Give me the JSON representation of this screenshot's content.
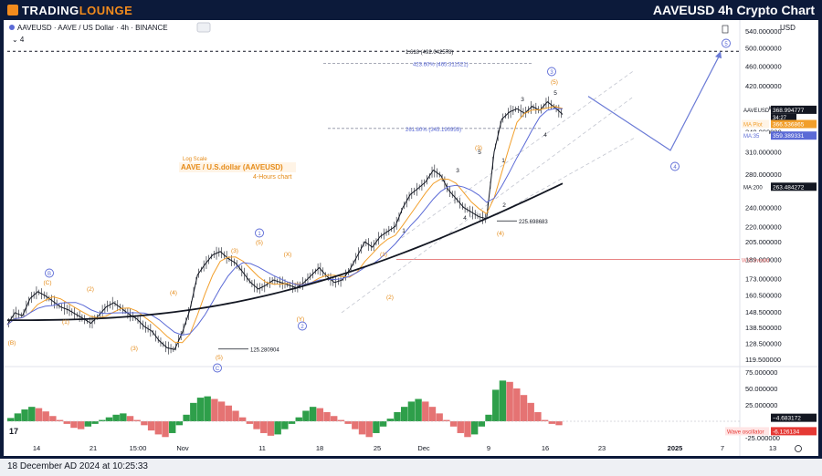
{
  "header": {
    "brand_part1": "TRADING",
    "brand_part2": "LOUNGE",
    "chart_title": "AAVEUSD 4h Crypto Chart"
  },
  "symbol_bar": {
    "text": "AAVEUSD · AAVE / US Dollar · 4h · BINANCE",
    "indicator_count": "4"
  },
  "price_axis": {
    "currency": "USD",
    "ticks": [
      "540.000000",
      "500.000000",
      "460.000000",
      "420.000000",
      "380.000000",
      "340.000000",
      "310.000000",
      "280.000000",
      "240.000000",
      "220.000000",
      "205.000000",
      "189.000000",
      "173.000000",
      "160.500000",
      "148.500000",
      "138.500000",
      "128.500000",
      "119.500000"
    ],
    "badges": [
      {
        "label": "AAVEUSD",
        "value": "368.994777",
        "sub": "34:27",
        "color": "#131722"
      },
      {
        "label": "MA Plot",
        "value": "366.536865",
        "color": "#f29f2b"
      },
      {
        "label": "MA:35",
        "value": "359.389331",
        "color": "#5b6ad6"
      },
      {
        "label": "MA:200",
        "value": "263.484272",
        "color": "#131722"
      },
      {
        "label": "W.C.Invalid",
        "value": "",
        "color": "#e65757"
      }
    ]
  },
  "oscillator_axis": {
    "ticks": [
      "75.000000",
      "50.000000",
      "25.000000",
      "-25.000000"
    ],
    "badges": [
      {
        "label": "",
        "value": "4.683172",
        "color": "#131722"
      },
      {
        "label": "Wave oscillator",
        "value": "-6.126134",
        "color": "#e53935"
      }
    ]
  },
  "time_axis": {
    "ticks": [
      "14",
      "21",
      "15:00",
      "Nov",
      "11",
      "18",
      "25",
      "Dec",
      "9",
      "16",
      "23",
      "2025",
      "7",
      "13"
    ]
  },
  "annotations": {
    "log_scale": "Log Scale",
    "chart_label": "AAVE / U.S.dollar (AAVEUSD)",
    "timeframe_label": "4-Hours chart",
    "fib_1618": "1.618 (492.042578)",
    "fib_4236": "423.60% (465.311521)",
    "fib_2618": "261.80% (345.190959)",
    "low_1": "125.280904",
    "low_2": "225.698683",
    "wave_labels": {
      "w_B": "B",
      "w_C": "(C)",
      "w_B_paren": "(B)",
      "w_1_a": "(1)",
      "w_2_a": "(2)",
      "w_3_a": "(3)",
      "w_4_a": "(4)",
      "w_5_a": "(5)",
      "w_C_circ": "C",
      "w_3b": "(3)",
      "w_1b": "1",
      "w_5b": "(5)",
      "w_X": "(X)",
      "w_Y": "(Y)",
      "w_2circ": "2",
      "w_1c": "(1)",
      "w_2c": "(2)",
      "w_1d": "1",
      "w_3d": "3",
      "w_5d": "5",
      "w_4d": "4",
      "w_3e": "(3)",
      "w_1e": "1",
      "w_2e": "2",
      "w_4e": "(4)",
      "w_3f": "3",
      "w_5f": "5",
      "w_4f": "4",
      "w_5circ": "(5)",
      "w_3circ": "3",
      "w_4circ": "4",
      "w_5circ_top": "5"
    }
  },
  "footer": {
    "timestamp": "18 December AD 2024 at 10:25:33"
  },
  "colors": {
    "price": "#131722",
    "ma_plot": "#f29f2b",
    "ma35": "#5b6ad6",
    "ma200": "#131722",
    "forecast": "#6b7bd6",
    "wave_orange": "#e58a16",
    "invalid": "#e57373",
    "osc_up": "#2e9f4a",
    "osc_down": "#e57373"
  },
  "chart_data": [
    {
      "type": "line",
      "title": "AAVEUSD 4h",
      "series": [
        {
          "name": "AAVEUSD",
          "values": [
            140,
            148,
            146,
            158,
            163,
            160,
            156,
            152,
            150,
            147,
            144,
            141,
            146,
            152,
            155,
            151,
            147,
            144,
            139,
            136,
            130,
            126,
            125,
            135,
            150,
            176,
            185,
            193,
            196,
            190,
            186,
            178,
            170,
            165,
            168,
            172,
            170,
            168,
            166,
            170,
            176,
            182,
            175,
            170,
            172,
            180,
            192,
            205,
            200,
            210,
            215,
            220,
            240,
            255,
            262,
            270,
            285,
            278,
            260,
            250,
            240,
            235,
            230,
            228,
            310,
            360,
            372,
            378,
            370,
            382,
            375,
            390,
            380,
            368
          ]
        },
        {
          "name": "MA Plot",
          "values": []
        },
        {
          "name": "MA:35",
          "values": []
        },
        {
          "name": "MA:200",
          "values": []
        }
      ],
      "ylim": [
        119.5,
        540
      ]
    },
    {
      "type": "bar",
      "title": "Wave oscillator",
      "values": [
        5,
        12,
        18,
        22,
        20,
        15,
        8,
        2,
        -4,
        -10,
        -12,
        -8,
        -4,
        2,
        6,
        10,
        12,
        8,
        2,
        -6,
        -14,
        -20,
        -24,
        -18,
        -6,
        10,
        28,
        36,
        38,
        34,
        30,
        24,
        16,
        6,
        -4,
        -12,
        -18,
        -22,
        -20,
        -12,
        -4,
        6,
        16,
        22,
        20,
        14,
        8,
        2,
        -4,
        -12,
        -20,
        -24,
        -18,
        -8,
        4,
        14,
        22,
        30,
        34,
        30,
        22,
        12,
        2,
        -8,
        -18,
        -24,
        -20,
        -8,
        10,
        48,
        62,
        60,
        50,
        40,
        28,
        14,
        2,
        -4,
        -6
      ],
      "ylim": [
        -25,
        75
      ]
    }
  ]
}
